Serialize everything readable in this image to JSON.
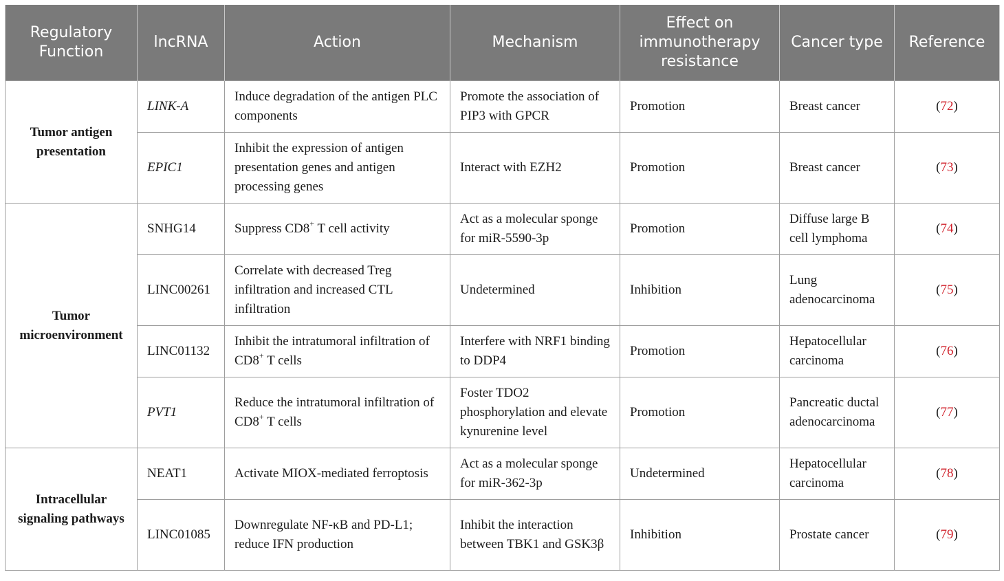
{
  "headers": {
    "regulatory_function": "Regulatory Function",
    "lncrna": "lncRNA",
    "action": "Action",
    "mechanism": "Mechanism",
    "effect": "Effect on immunotherapy resistance",
    "cancer_type": "Cancer type",
    "reference": "Reference"
  },
  "groups": {
    "g1": "Tumor antigen presentation",
    "g2": "Tumor microenvironment",
    "g3": "Intracellular signaling pathways"
  },
  "rows": [
    {
      "lncrna": "LINK-A",
      "action": "Induce degradation of the antigen PLC components",
      "mechanism": "Promote the association of PIP3 with GPCR",
      "effect": "Promotion",
      "cancer": "Breast cancer",
      "ref": "72"
    },
    {
      "lncrna": "EPIC1",
      "action": "Inhibit the expression of antigen presentation genes and antigen processing genes",
      "mechanism": "Interact with EZH2",
      "effect": "Promotion",
      "cancer": "Breast cancer",
      "ref": "73"
    },
    {
      "lncrna": "SNHG14",
      "action_pre": "Suppress CD8",
      "action_sup": "+",
      "action_post": " T cell activity",
      "mechanism": "Act as a molecular sponge for miR-5590-3p",
      "effect": "Promotion",
      "cancer": "Diffuse large B cell lymphoma",
      "ref": "74"
    },
    {
      "lncrna": "LINC00261",
      "action": "Correlate with decreased Treg infiltration and increased CTL infiltration",
      "mechanism": "Undetermined",
      "effect": "Inhibition",
      "cancer": "Lung adenocarcinoma",
      "ref": "75"
    },
    {
      "lncrna": "LINC01132",
      "action_pre": "Inhibit the intratumoral infiltration of CD8",
      "action_sup": "+",
      "action_post": " T cells",
      "mechanism": "Interfere with NRF1 binding to DDP4",
      "effect": "Promotion",
      "cancer": "Hepatocellular carcinoma",
      "ref": "76"
    },
    {
      "lncrna": "PVT1",
      "action_pre": "Reduce the intratumoral infiltration of CD8",
      "action_sup": "+",
      "action_post": " T cells",
      "mechanism": "Foster TDO2 phosphorylation and elevate kynurenine level",
      "effect": "Promotion",
      "cancer": "Pancreatic ductal adenocarcinoma",
      "ref": "77"
    },
    {
      "lncrna": "NEAT1",
      "action": "Activate MIOX-mediated ferroptosis",
      "mechanism": "Act as a molecular sponge for miR-362-3p",
      "effect": "Undetermined",
      "cancer": "Hepatocellular carcinoma",
      "ref": "78"
    },
    {
      "lncrna": "LINC01085",
      "action": "Downregulate NF-κB and PD-L1; reduce IFN production",
      "mechanism": "Inhibit the interaction between TBK1 and GSK3β",
      "effect": "Inhibition",
      "cancer": "Prostate cancer",
      "ref": "79"
    }
  ],
  "ref_open": "(",
  "ref_close": ")"
}
